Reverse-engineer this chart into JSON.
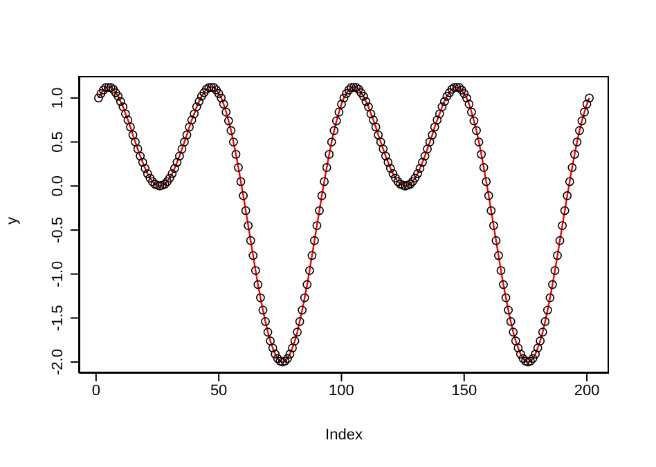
{
  "chart_data": {
    "type": "line",
    "xlabel": "Index",
    "ylabel": "y",
    "xlim": [
      -7,
      209
    ],
    "xticks": [
      0,
      50,
      100,
      150,
      200
    ],
    "ylim": [
      -2.125,
      1.25
    ],
    "yticks": [
      {
        "value": -2,
        "label": "-2.0"
      },
      {
        "value": -1.5,
        "label": "-1.5"
      },
      {
        "value": -1,
        "label": "-1.0"
      },
      {
        "value": -0.5,
        "label": "-0.5"
      },
      {
        "value": 0,
        "label": "0.0"
      },
      {
        "value": 0.5,
        "label": "0.5"
      },
      {
        "value": 1,
        "label": "1.0"
      }
    ],
    "grid": false,
    "x": [
      1,
      2,
      3,
      4,
      5,
      6,
      7,
      8,
      9,
      10,
      11,
      12,
      13,
      14,
      15,
      16,
      17,
      18,
      19,
      20,
      21,
      22,
      23,
      24,
      25,
      26,
      27,
      28,
      29,
      30,
      31,
      32,
      33,
      34,
      35,
      36,
      37,
      38,
      39,
      40,
      41,
      42,
      43,
      44,
      45,
      46,
      47,
      48,
      49,
      50,
      51,
      52,
      53,
      54,
      55,
      56,
      57,
      58,
      59,
      60,
      61,
      62,
      63,
      64,
      65,
      66,
      67,
      68,
      69,
      70,
      71,
      72,
      73,
      74,
      75,
      76,
      77,
      78,
      79,
      80,
      81,
      82,
      83,
      84,
      85,
      86,
      87,
      88,
      89,
      90,
      91,
      92,
      93,
      94,
      95,
      96,
      97,
      98,
      99,
      100,
      101,
      102,
      103,
      104,
      105,
      106,
      107,
      108,
      109,
      110,
      111,
      112,
      113,
      114,
      115,
      116,
      117,
      118,
      119,
      120,
      121,
      122,
      123,
      124,
      125,
      126,
      127,
      128,
      129,
      130,
      131,
      132,
      133,
      134,
      135,
      136,
      137,
      138,
      139,
      140,
      141,
      142,
      143,
      144,
      145,
      146,
      147,
      148,
      149,
      150,
      151,
      152,
      153,
      154,
      155,
      156,
      157,
      158,
      159,
      160,
      161,
      162,
      163,
      164,
      165,
      166,
      167,
      168,
      169,
      170,
      171,
      172,
      173,
      174,
      175,
      176,
      177,
      178,
      179,
      180,
      181,
      182,
      183,
      184,
      185,
      186,
      187,
      188,
      189,
      190,
      191,
      192,
      193,
      194,
      195,
      196,
      197,
      198,
      199,
      200,
      201
    ],
    "series": [
      {
        "color": "#ff0000",
        "values": [
          1.0,
          1.05,
          1.09,
          1.12,
          1.12,
          1.12,
          1.1,
          1.06,
          1.02,
          0.96,
          0.9,
          0.82,
          0.75,
          0.67,
          0.58,
          0.5,
          0.42,
          0.34,
          0.27,
          0.2,
          0.14,
          0.09,
          0.05,
          0.02,
          0.01,
          0.0,
          0.01,
          0.02,
          0.05,
          0.09,
          0.14,
          0.2,
          0.27,
          0.34,
          0.42,
          0.5,
          0.58,
          0.67,
          0.75,
          0.82,
          0.9,
          0.96,
          1.02,
          1.06,
          1.1,
          1.12,
          1.12,
          1.12,
          1.09,
          1.05,
          1.0,
          0.93,
          0.84,
          0.74,
          0.63,
          0.5,
          0.36,
          0.21,
          0.05,
          -0.11,
          -0.28,
          -0.45,
          -0.62,
          -0.79,
          -0.96,
          -1.12,
          -1.27,
          -1.41,
          -1.54,
          -1.66,
          -1.76,
          -1.84,
          -1.91,
          -1.96,
          -1.99,
          -2.0,
          -1.99,
          -1.96,
          -1.91,
          -1.84,
          -1.76,
          -1.66,
          -1.54,
          -1.41,
          -1.27,
          -1.12,
          -0.96,
          -0.79,
          -0.62,
          -0.45,
          -0.28,
          -0.11,
          0.05,
          0.21,
          0.36,
          0.5,
          0.63,
          0.74,
          0.84,
          0.93,
          1.0,
          1.05,
          1.09,
          1.12,
          1.12,
          1.12,
          1.1,
          1.06,
          1.02,
          0.96,
          0.9,
          0.82,
          0.75,
          0.67,
          0.58,
          0.5,
          0.42,
          0.34,
          0.27,
          0.2,
          0.14,
          0.09,
          0.05,
          0.02,
          0.01,
          0.0,
          0.01,
          0.02,
          0.05,
          0.09,
          0.14,
          0.2,
          0.27,
          0.34,
          0.42,
          0.5,
          0.58,
          0.67,
          0.75,
          0.82,
          0.9,
          0.96,
          1.02,
          1.06,
          1.1,
          1.12,
          1.12,
          1.12,
          1.09,
          1.05,
          1.0,
          0.93,
          0.84,
          0.74,
          0.63,
          0.5,
          0.36,
          0.21,
          0.05,
          -0.11,
          -0.28,
          -0.45,
          -0.62,
          -0.79,
          -0.96,
          -1.12,
          -1.27,
          -1.41,
          -1.54,
          -1.66,
          -1.76,
          -1.84,
          -1.91,
          -1.96,
          -1.99,
          -2.0,
          -1.99,
          -1.96,
          -1.91,
          -1.84,
          -1.76,
          -1.66,
          -1.54,
          -1.41,
          -1.27,
          -1.12,
          -0.96,
          -0.79,
          -0.62,
          -0.45,
          -0.28,
          -0.11,
          0.05,
          0.21,
          0.36,
          0.5,
          0.63,
          0.74,
          0.84,
          0.93,
          1.0
        ]
      },
      {
        "type": "scatter",
        "marker": "circle",
        "color": "#000000",
        "values": [
          1.0,
          1.05,
          1.09,
          1.12,
          1.12,
          1.12,
          1.1,
          1.06,
          1.02,
          0.96,
          0.9,
          0.82,
          0.75,
          0.67,
          0.58,
          0.5,
          0.42,
          0.34,
          0.27,
          0.2,
          0.14,
          0.09,
          0.05,
          0.02,
          0.01,
          0.0,
          0.01,
          0.02,
          0.05,
          0.09,
          0.14,
          0.2,
          0.27,
          0.34,
          0.42,
          0.5,
          0.58,
          0.67,
          0.75,
          0.82,
          0.9,
          0.96,
          1.02,
          1.06,
          1.1,
          1.12,
          1.12,
          1.12,
          1.09,
          1.05,
          1.0,
          0.93,
          0.84,
          0.74,
          0.63,
          0.5,
          0.36,
          0.21,
          0.05,
          -0.11,
          -0.28,
          -0.45,
          -0.62,
          -0.79,
          -0.96,
          -1.12,
          -1.27,
          -1.41,
          -1.54,
          -1.66,
          -1.76,
          -1.84,
          -1.91,
          -1.96,
          -1.99,
          -2.0,
          -1.99,
          -1.96,
          -1.91,
          -1.84,
          -1.76,
          -1.66,
          -1.54,
          -1.41,
          -1.27,
          -1.12,
          -0.96,
          -0.79,
          -0.62,
          -0.45,
          -0.28,
          -0.11,
          0.05,
          0.21,
          0.36,
          0.5,
          0.63,
          0.74,
          0.84,
          0.93,
          1.0,
          1.05,
          1.09,
          1.12,
          1.12,
          1.12,
          1.1,
          1.06,
          1.02,
          0.96,
          0.9,
          0.82,
          0.75,
          0.67,
          0.58,
          0.5,
          0.42,
          0.34,
          0.27,
          0.2,
          0.14,
          0.09,
          0.05,
          0.02,
          0.01,
          0.0,
          0.01,
          0.02,
          0.05,
          0.09,
          0.14,
          0.2,
          0.27,
          0.34,
          0.42,
          0.5,
          0.58,
          0.67,
          0.75,
          0.82,
          0.9,
          0.96,
          1.02,
          1.06,
          1.1,
          1.12,
          1.12,
          1.12,
          1.09,
          1.05,
          1.0,
          0.93,
          0.84,
          0.74,
          0.63,
          0.5,
          0.36,
          0.21,
          0.05,
          -0.11,
          -0.28,
          -0.45,
          -0.62,
          -0.79,
          -0.96,
          -1.12,
          -1.27,
          -1.41,
          -1.54,
          -1.66,
          -1.76,
          -1.84,
          -1.91,
          -1.96,
          -1.99,
          -2.0,
          -1.99,
          -1.96,
          -1.91,
          -1.84,
          -1.76,
          -1.66,
          -1.54,
          -1.41,
          -1.27,
          -1.12,
          -0.96,
          -0.79,
          -0.62,
          -0.45,
          -0.28,
          -0.11,
          0.05,
          0.21,
          0.36,
          0.5,
          0.63,
          0.74,
          0.84,
          0.93,
          1.0
        ]
      }
    ]
  }
}
